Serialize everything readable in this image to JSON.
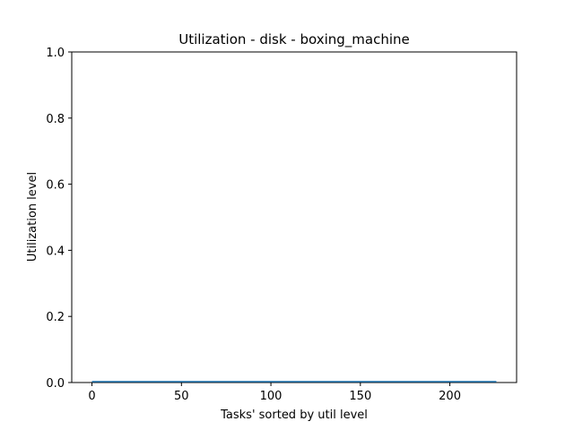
{
  "chart_data": {
    "type": "line",
    "title": "Utilization - disk - boxing_machine",
    "xlabel": "Tasks' sorted by util level",
    "ylabel": "Utilization level",
    "xlim": [
      -11.3,
      237.3
    ],
    "ylim": [
      0,
      1
    ],
    "x_ticks": [
      0,
      50,
      100,
      150,
      200
    ],
    "y_ticks": [
      0.0,
      0.2,
      0.4,
      0.6,
      0.8,
      1.0
    ],
    "y_tick_labels": [
      "0.0",
      "0.2",
      "0.4",
      "0.6",
      "0.8",
      "1.0"
    ],
    "grid": false,
    "series": [
      {
        "color": "#1f77b4",
        "x": [
          0,
          226
        ],
        "y": [
          0.0,
          0.0
        ]
      }
    ]
  }
}
